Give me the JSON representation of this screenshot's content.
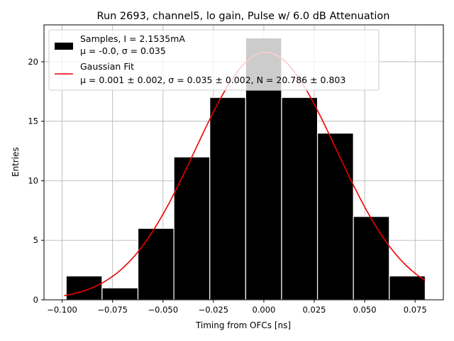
{
  "chart_data": {
    "type": "bar",
    "title": "Run 2693, channel5, lo gain, Pulse w/ 6.0 dB Attenuation",
    "xlabel": "Timing from OFCs [ns]",
    "ylabel": "Entries",
    "xlim": [
      -0.109,
      0.089
    ],
    "ylim": [
      0,
      23.1
    ],
    "grid": true,
    "legend_position": "top-left",
    "x_ticks": [
      -0.1,
      -0.075,
      -0.05,
      -0.025,
      0.0,
      0.025,
      0.05,
      0.075
    ],
    "x_tick_labels": [
      "−0.100",
      "−0.075",
      "−0.050",
      "−0.025",
      "0.000",
      "0.025",
      "0.050",
      "0.075"
    ],
    "y_ticks": [
      0,
      5,
      10,
      15,
      20
    ],
    "y_tick_labels": [
      "0",
      "5",
      "10",
      "15",
      "20"
    ],
    "histogram": {
      "name": "Samples, I = 2.1535mA",
      "stats_label": "μ = -0.0, σ = 0.035",
      "color": "#000000",
      "edge_color": "#ffffff",
      "bins": [
        {
          "x0": -0.098,
          "x1": -0.0802,
          "count": 2
        },
        {
          "x0": -0.0802,
          "x1": -0.0624,
          "count": 1
        },
        {
          "x0": -0.0624,
          "x1": -0.0446,
          "count": 6
        },
        {
          "x0": -0.0446,
          "x1": -0.0268,
          "count": 12
        },
        {
          "x0": -0.0268,
          "x1": -0.009,
          "count": 17
        },
        {
          "x0": -0.009,
          "x1": 0.0088,
          "count": 22
        },
        {
          "x0": 0.0088,
          "x1": 0.0266,
          "count": 17
        },
        {
          "x0": 0.0266,
          "x1": 0.0444,
          "count": 14
        },
        {
          "x0": 0.0444,
          "x1": 0.0622,
          "count": 7
        },
        {
          "x0": 0.0622,
          "x1": 0.08,
          "count": 2
        }
      ]
    },
    "fit": {
      "name": "Gaussian Fit",
      "stats_label": "μ = 0.001 ± 0.002, σ = 0.035 ± 0.002, N = 20.786 ± 0.803",
      "color": "#ee0000",
      "mu": 0.001,
      "sigma": 0.035,
      "N": 20.786,
      "x_range": [
        -0.099,
        0.08
      ]
    }
  }
}
